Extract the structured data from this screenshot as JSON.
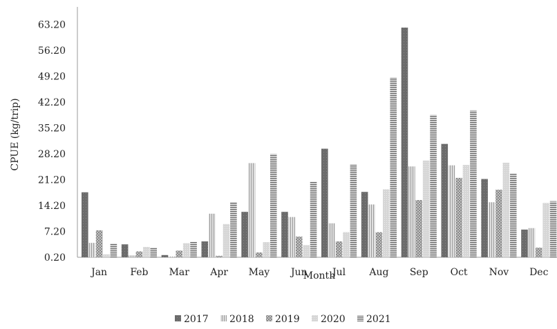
{
  "chart_data": {
    "type": "bar",
    "xlabel": "Month",
    "ylabel": "CPUE (kg/trip)",
    "categories": [
      "Jan",
      "Feb",
      "Mar",
      "Apr",
      "May",
      "Jun",
      "Jul",
      "Aug",
      "Sep",
      "Oct",
      "Nov",
      "Dec"
    ],
    "y_ticks": [
      "0.20",
      "7.20",
      "14.20",
      "21.20",
      "28.20",
      "35.20",
      "42.20",
      "49.20",
      "56.20",
      "63.20"
    ],
    "ylim": [
      0.2,
      68
    ],
    "grid": false,
    "legend_position": "bottom",
    "series": [
      {
        "name": "2017",
        "color": "#6b6b6b",
        "pattern": "solid",
        "values": [
          17.8,
          3.7,
          0.8,
          4.5,
          12.5,
          12.5,
          29.6,
          17.9,
          62.4,
          30.9,
          21.4,
          7.7
        ]
      },
      {
        "name": "2018",
        "color": "#bdbdbd",
        "pattern": "vertical-stripes",
        "values": [
          4.1,
          0.7,
          0.4,
          12.0,
          25.7,
          11.1,
          9.4,
          14.5,
          24.8,
          25.1,
          15.1,
          8.1
        ]
      },
      {
        "name": "2019",
        "color": "#888888",
        "pattern": "dots",
        "values": [
          7.5,
          1.8,
          2.0,
          0.6,
          1.5,
          5.8,
          4.5,
          7.0,
          15.7,
          21.7,
          18.5,
          2.8
        ]
      },
      {
        "name": "2020",
        "color": "#cfcfcf",
        "pattern": "light",
        "values": [
          1.0,
          3.0,
          4.0,
          9.2,
          4.3,
          3.5,
          7.0,
          18.6,
          26.4,
          25.2,
          25.8,
          14.9
        ]
      },
      {
        "name": "2021",
        "color": "#8a8a8a",
        "pattern": "horizontal-stripes",
        "values": [
          4.0,
          2.9,
          4.4,
          15.2,
          28.2,
          20.7,
          25.4,
          48.9,
          38.8,
          40.0,
          22.8,
          15.4
        ]
      }
    ]
  }
}
